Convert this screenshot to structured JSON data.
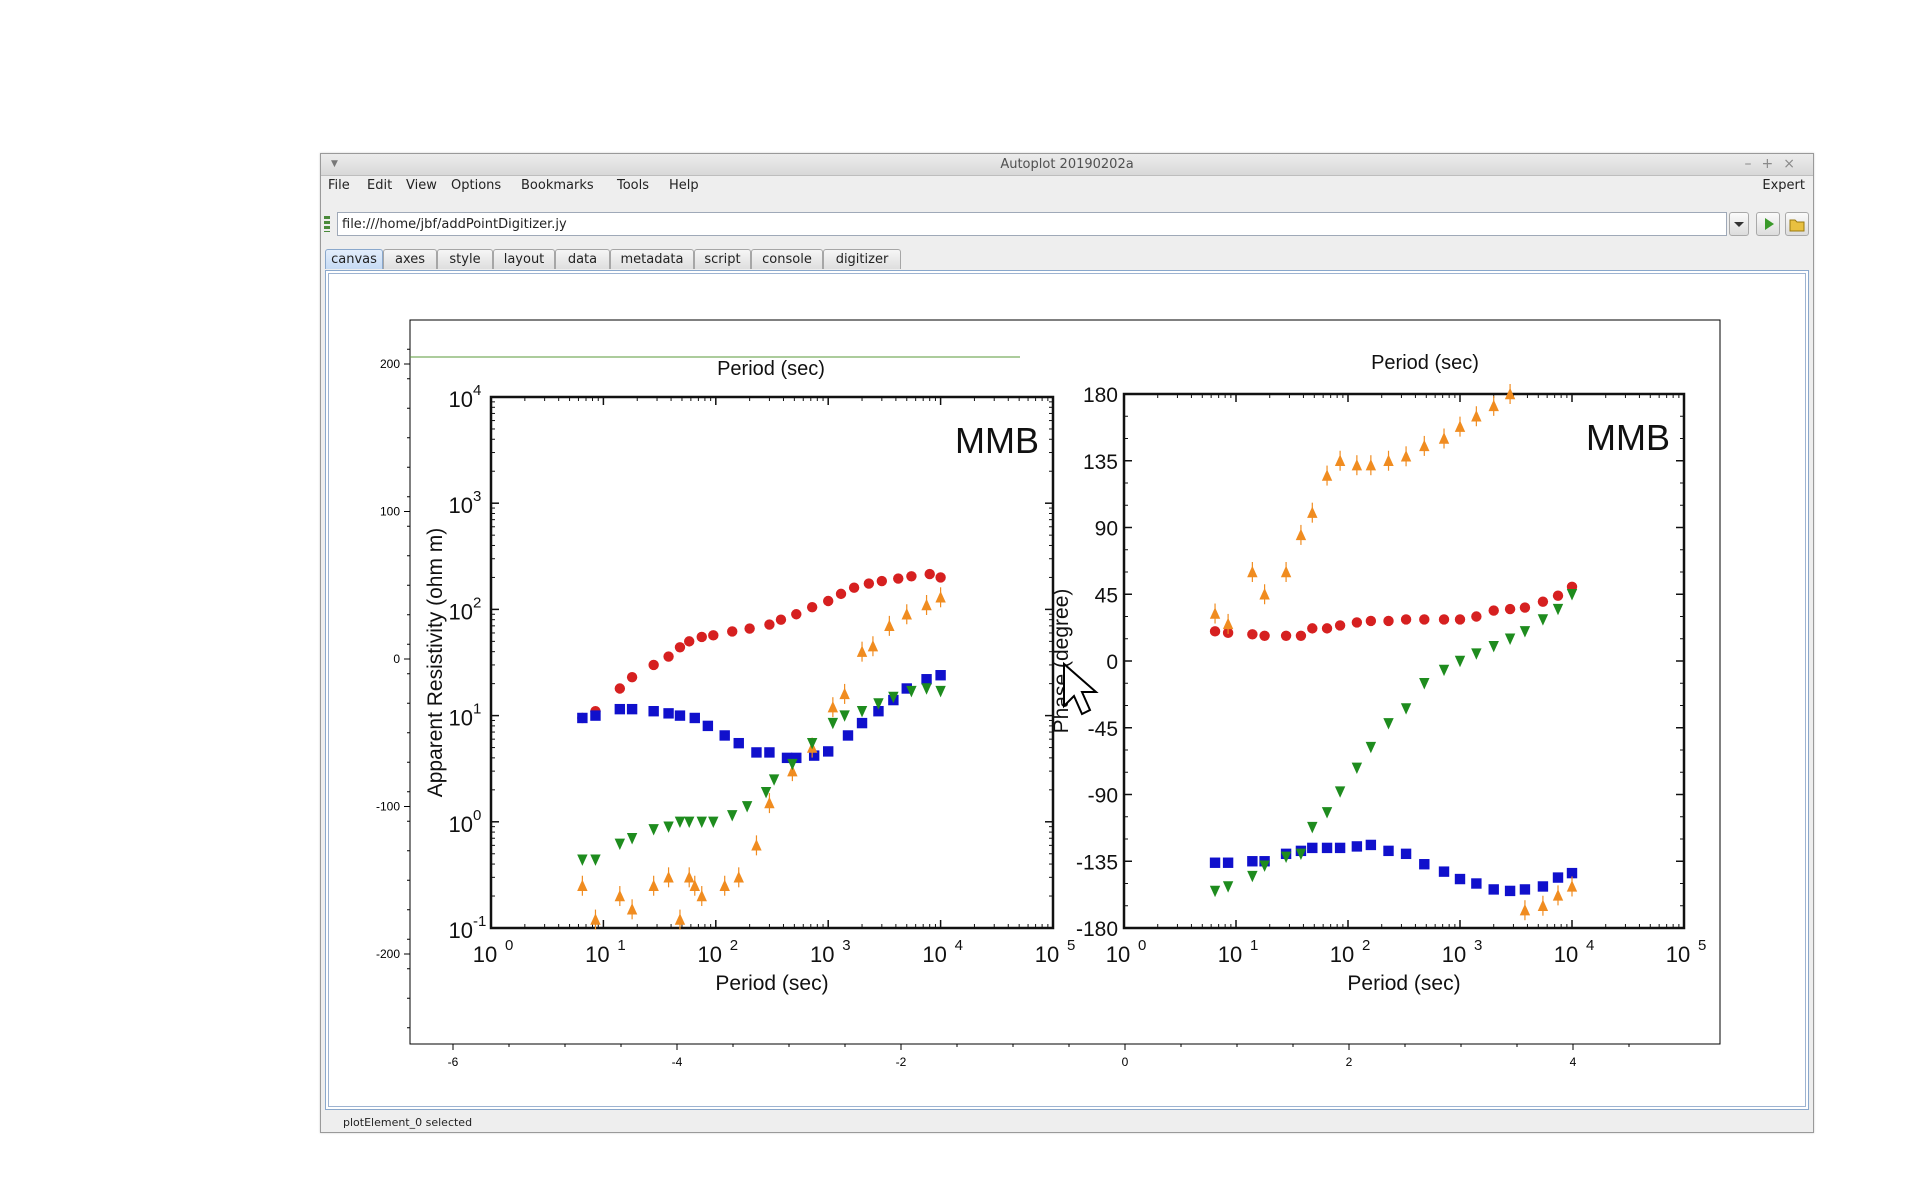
{
  "window": {
    "title": "Autoplot 20190202a"
  },
  "menu": {
    "items": [
      "File",
      "Edit",
      "View",
      "Options",
      "Bookmarks",
      "Tools",
      "Help"
    ],
    "right": "Expert"
  },
  "url": {
    "value": "file:///home/jbf/addPointDigitizer.jy"
  },
  "tabs": [
    "canvas",
    "axes",
    "style",
    "layout",
    "data",
    "metadata",
    "script",
    "console",
    "digitizer"
  ],
  "status": "plotElement_0 selected",
  "outer_axes": {
    "y_ticks": [
      "200",
      "100",
      "0",
      "-100",
      "-200"
    ],
    "x_ticks": [
      "-6",
      "-4",
      "-2",
      "0",
      "2",
      "4"
    ]
  },
  "image": {
    "top_label_left": "Period (sec)",
    "top_label_right": "Period (sec)",
    "left_panel": {
      "tag": "MMB",
      "ylabel": "Apparent Resistivity (ohm m)",
      "xlabel": "Period (sec)",
      "y_ticks": [
        "10",
        "10",
        "10",
        "10",
        "10",
        "10"
      ],
      "y_exps": [
        "4",
        "3",
        "2",
        "1",
        "0",
        "-1"
      ],
      "x_ticks": [
        "10",
        "10",
        "10",
        "10",
        "10",
        "10"
      ],
      "x_exps": [
        "0",
        "1",
        "2",
        "3",
        "4",
        "5"
      ]
    },
    "right_panel": {
      "tag": "MMB",
      "ylabel": "Phase (degree)",
      "xlabel": "Period (sec)",
      "y_ticks": [
        "180",
        "135",
        "90",
        "45",
        "0",
        "-45",
        "-90",
        "-135",
        "-180"
      ],
      "x_ticks": [
        "10",
        "10",
        "10",
        "10",
        "10",
        "10"
      ],
      "x_exps": [
        "0",
        "1",
        "2",
        "3",
        "4",
        "5"
      ]
    }
  },
  "chart_data": [
    {
      "type": "scatter",
      "panel": "left",
      "xscale": "log",
      "yscale": "log",
      "xlim": [
        1,
        100000
      ],
      "ylim": [
        0.1,
        10000
      ],
      "xlabel": "Period (sec)",
      "ylabel": "Apparent Resistivity (ohm m)",
      "series": [
        {
          "color": "#d62020",
          "marker": "circle",
          "x": [
            6.5,
            8.5,
            14,
            18,
            28,
            38,
            48,
            58,
            75,
            95,
            140,
            200,
            300,
            380,
            520,
            720,
            1000,
            1300,
            1700,
            2300,
            3000,
            4200,
            5500,
            8000,
            10000
          ],
          "y": [
            9.5,
            11,
            18,
            23,
            30,
            36,
            44,
            50,
            55,
            57,
            62,
            66,
            72,
            80,
            90,
            105,
            120,
            140,
            160,
            175,
            185,
            195,
            205,
            215,
            200
          ]
        },
        {
          "color": "#1010cc",
          "marker": "square",
          "x": [
            6.5,
            8.5,
            14,
            18,
            28,
            38,
            48,
            65,
            85,
            120,
            160,
            230,
            300,
            430,
            520,
            750,
            1000,
            1500,
            2000,
            2800,
            3800,
            5000,
            7500,
            10000
          ],
          "y": [
            9.5,
            10,
            11.5,
            11.5,
            11,
            10.5,
            10,
            9.5,
            8,
            6.5,
            5.5,
            4.5,
            4.5,
            4,
            4,
            4.2,
            4.6,
            6.5,
            8.5,
            11,
            14,
            18,
            22,
            24
          ]
        },
        {
          "color": "#f08c20",
          "marker": "triangle",
          "x": [
            6.5,
            8.5,
            14,
            18,
            28,
            38,
            48,
            58,
            65,
            75,
            120,
            160,
            230,
            300,
            480,
            720,
            1100,
            1400,
            2000,
            2500,
            3500,
            5000,
            7500,
            10000
          ],
          "y": [
            0.25,
            0.12,
            0.2,
            0.15,
            0.25,
            0.3,
            0.12,
            0.3,
            0.25,
            0.2,
            0.25,
            0.3,
            0.6,
            1.5,
            3,
            5,
            12,
            16,
            40,
            45,
            70,
            90,
            110,
            130
          ]
        },
        {
          "color": "#1e8c1e",
          "marker": "triangle-down",
          "x": [
            6.5,
            8.5,
            14,
            18,
            28,
            38,
            48,
            58,
            75,
            95,
            140,
            190,
            280,
            330,
            480,
            720,
            1100,
            1400,
            2000,
            2800,
            3800,
            5500,
            7500,
            10000
          ],
          "y": [
            0.44,
            0.44,
            0.62,
            0.7,
            0.85,
            0.9,
            1,
            1,
            1,
            1,
            1.15,
            1.4,
            1.9,
            2.5,
            3.5,
            5.5,
            8.5,
            10,
            11,
            13,
            15,
            17,
            18,
            17
          ]
        }
      ]
    },
    {
      "type": "scatter",
      "panel": "right",
      "xscale": "log",
      "xlim": [
        1,
        100000
      ],
      "ylim": [
        -180,
        180
      ],
      "xlabel": "Period (sec)",
      "ylabel": "Phase (degree)",
      "series": [
        {
          "color": "#d62020",
          "marker": "circle",
          "x": [
            6.5,
            8.5,
            14,
            18,
            28,
            38,
            48,
            65,
            85,
            120,
            160,
            230,
            330,
            480,
            720,
            1000,
            1400,
            2000,
            2800,
            3800,
            5500,
            7500,
            10000
          ],
          "y": [
            20,
            19,
            18,
            17,
            17,
            17,
            22,
            22,
            24,
            26,
            27,
            27,
            28,
            28,
            28,
            28,
            30,
            34,
            35,
            36,
            40,
            44,
            50
          ]
        },
        {
          "color": "#1010cc",
          "marker": "square",
          "x": [
            6.5,
            8.5,
            14,
            18,
            28,
            38,
            48,
            65,
            85,
            120,
            160,
            230,
            330,
            480,
            720,
            1000,
            1400,
            2000,
            2800,
            3800,
            5500,
            7500,
            10000
          ],
          "y": [
            -136,
            -136,
            -135,
            -135,
            -130,
            -128,
            -126,
            -126,
            -126,
            -125,
            -124,
            -128,
            -130,
            -137,
            -142,
            -147,
            -150,
            -154,
            -155,
            -154,
            -152,
            -146,
            -143
          ]
        },
        {
          "color": "#f08c20",
          "marker": "triangle",
          "x": [
            6.5,
            8.5,
            14,
            18,
            28,
            38,
            48,
            65,
            85,
            120,
            160,
            230,
            330,
            480,
            720,
            1000,
            1400,
            2000,
            2800,
            3800,
            5500,
            7500,
            10000
          ],
          "y": [
            32,
            25,
            60,
            45,
            60,
            85,
            100,
            125,
            135,
            132,
            132,
            135,
            138,
            145,
            150,
            158,
            165,
            172,
            180,
            -168,
            -165,
            -158,
            -152
          ]
        },
        {
          "color": "#1e8c1e",
          "marker": "triangle-down",
          "x": [
            6.5,
            8.5,
            14,
            18,
            28,
            38,
            48,
            65,
            85,
            120,
            160,
            230,
            330,
            480,
            720,
            1000,
            1400,
            2000,
            2800,
            3800,
            5500,
            7500,
            10000
          ],
          "y": [
            -155,
            -152,
            -145,
            -138,
            -132,
            -130,
            -112,
            -102,
            -88,
            -72,
            -58,
            -42,
            -32,
            -15,
            -6,
            0,
            5,
            10,
            15,
            20,
            28,
            35,
            45
          ]
        }
      ]
    }
  ]
}
